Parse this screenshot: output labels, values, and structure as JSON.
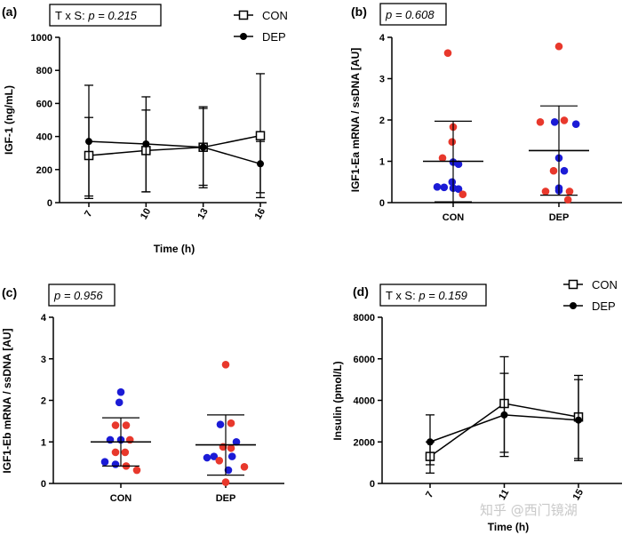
{
  "watermark": "知乎 @西门镜湖",
  "chart_data": [
    {
      "panel": "(a)",
      "type": "line",
      "stat_prefix": "T x S: ",
      "stat_p": "p = 0.215",
      "xlabel": "Time (h)",
      "ylabel": "IGF-1 (ng/mL)",
      "categories": [
        "7",
        "10",
        "13",
        "16"
      ],
      "ylim": [
        0,
        1000
      ],
      "yticks": [
        "0",
        "200",
        "400",
        "600",
        "800",
        "1000"
      ],
      "series": [
        {
          "name": "CON",
          "marker": "square-open",
          "values": [
            285,
            315,
            335,
            405
          ],
          "err_low": [
            40,
            65,
            90,
            30
          ],
          "err_high": [
            515,
            560,
            570,
            780
          ]
        },
        {
          "name": "DEP",
          "marker": "circle-filled",
          "values": [
            370,
            355,
            335,
            235
          ],
          "err_low": [
            25,
            65,
            105,
            60
          ],
          "err_high": [
            710,
            640,
            580,
            370
          ]
        }
      ]
    },
    {
      "panel": "(b)",
      "type": "scatter",
      "stat_p": "p = 0.608",
      "xlabel": "",
      "ylabel": "IGF1-Ea mRNA / ssDNA [AU]",
      "categories": [
        "CON",
        "DEP"
      ],
      "ylim": [
        0,
        4
      ],
      "yticks": [
        "0",
        "1",
        "2",
        "3",
        "4"
      ],
      "groups": [
        {
          "name": "CON",
          "mean": 1.0,
          "sd_low": 0.02,
          "sd_high": 1.97,
          "points": [
            {
              "x": -0.1,
              "y": 3.62,
              "c": "red"
            },
            {
              "x": 0.0,
              "y": 1.83,
              "c": "red"
            },
            {
              "x": -0.02,
              "y": 1.47,
              "c": "red"
            },
            {
              "x": -0.2,
              "y": 1.08,
              "c": "red"
            },
            {
              "x": 0.0,
              "y": 0.98,
              "c": "blue"
            },
            {
              "x": 0.1,
              "y": 0.93,
              "c": "blue"
            },
            {
              "x": -0.02,
              "y": 0.5,
              "c": "blue"
            },
            {
              "x": -0.3,
              "y": 0.38,
              "c": "blue"
            },
            {
              "x": -0.17,
              "y": 0.37,
              "c": "blue"
            },
            {
              "x": 0.0,
              "y": 0.35,
              "c": "blue"
            },
            {
              "x": 0.1,
              "y": 0.33,
              "c": "blue"
            },
            {
              "x": 0.18,
              "y": 0.2,
              "c": "red"
            }
          ]
        },
        {
          "name": "DEP",
          "mean": 1.26,
          "sd_low": 0.18,
          "sd_high": 2.34,
          "points": [
            {
              "x": 0.0,
              "y": 3.78,
              "c": "red"
            },
            {
              "x": -0.35,
              "y": 1.95,
              "c": "red"
            },
            {
              "x": -0.08,
              "y": 1.95,
              "c": "blue"
            },
            {
              "x": 0.1,
              "y": 1.99,
              "c": "red"
            },
            {
              "x": 0.32,
              "y": 1.9,
              "c": "blue"
            },
            {
              "x": 0.0,
              "y": 1.08,
              "c": "blue"
            },
            {
              "x": -0.1,
              "y": 0.77,
              "c": "red"
            },
            {
              "x": 0.1,
              "y": 0.77,
              "c": "blue"
            },
            {
              "x": 0.0,
              "y": 0.35,
              "c": "blue"
            },
            {
              "x": 0.0,
              "y": 0.29,
              "c": "blue"
            },
            {
              "x": -0.25,
              "y": 0.27,
              "c": "red"
            },
            {
              "x": 0.2,
              "y": 0.27,
              "c": "red"
            },
            {
              "x": 0.17,
              "y": 0.07,
              "c": "red"
            }
          ]
        }
      ]
    },
    {
      "panel": "(c)",
      "type": "scatter",
      "stat_p": "p = 0.956",
      "xlabel": "",
      "ylabel": "IGF1-Eb mRNA / ssDNA [AU]",
      "categories": [
        "CON",
        "DEP"
      ],
      "ylim": [
        0,
        4
      ],
      "yticks": [
        "0",
        "1",
        "2",
        "3",
        "4"
      ],
      "groups": [
        {
          "name": "CON",
          "mean": 1.0,
          "sd_low": 0.42,
          "sd_high": 1.58,
          "points": [
            {
              "x": 0.0,
              "y": 2.2,
              "c": "blue"
            },
            {
              "x": -0.03,
              "y": 1.95,
              "c": "blue"
            },
            {
              "x": -0.1,
              "y": 1.4,
              "c": "red"
            },
            {
              "x": 0.1,
              "y": 1.4,
              "c": "red"
            },
            {
              "x": -0.2,
              "y": 1.05,
              "c": "blue"
            },
            {
              "x": 0.0,
              "y": 1.05,
              "c": "blue"
            },
            {
              "x": 0.17,
              "y": 1.05,
              "c": "red"
            },
            {
              "x": -0.1,
              "y": 0.75,
              "c": "red"
            },
            {
              "x": 0.08,
              "y": 0.75,
              "c": "red"
            },
            {
              "x": -0.3,
              "y": 0.52,
              "c": "blue"
            },
            {
              "x": -0.1,
              "y": 0.46,
              "c": "blue"
            },
            {
              "x": 0.1,
              "y": 0.42,
              "c": "red"
            },
            {
              "x": 0.3,
              "y": 0.32,
              "c": "red"
            }
          ]
        },
        {
          "name": "DEP",
          "mean": 0.93,
          "sd_low": 0.2,
          "sd_high": 1.65,
          "points": [
            {
              "x": 0.0,
              "y": 2.86,
              "c": "red"
            },
            {
              "x": -0.1,
              "y": 1.42,
              "c": "blue"
            },
            {
              "x": 0.1,
              "y": 1.45,
              "c": "red"
            },
            {
              "x": 0.2,
              "y": 1.0,
              "c": "blue"
            },
            {
              "x": -0.05,
              "y": 0.88,
              "c": "red"
            },
            {
              "x": 0.1,
              "y": 0.85,
              "c": "red"
            },
            {
              "x": -0.35,
              "y": 0.62,
              "c": "blue"
            },
            {
              "x": -0.22,
              "y": 0.65,
              "c": "blue"
            },
            {
              "x": 0.12,
              "y": 0.65,
              "c": "blue"
            },
            {
              "x": -0.12,
              "y": 0.55,
              "c": "red"
            },
            {
              "x": 0.35,
              "y": 0.4,
              "c": "red"
            },
            {
              "x": 0.05,
              "y": 0.32,
              "c": "blue"
            },
            {
              "x": 0.0,
              "y": 0.03,
              "c": "red"
            }
          ]
        }
      ]
    },
    {
      "panel": "(d)",
      "type": "line",
      "stat_prefix": "T x S: ",
      "stat_p": "p = 0.159",
      "xlabel": "Time (h)",
      "ylabel": "Insulin (pmol/L)",
      "categories": [
        "7",
        "11",
        "15"
      ],
      "ylim": [
        0,
        8000
      ],
      "yticks": [
        "0",
        "2000",
        "4000",
        "6000",
        "8000"
      ],
      "series": [
        {
          "name": "CON",
          "marker": "square-open",
          "values": [
            1300,
            3850,
            3200
          ],
          "err_low": [
            500,
            1500,
            1200
          ],
          "err_high": [
            2000,
            6100,
            5200
          ]
        },
        {
          "name": "DEP",
          "marker": "circle-filled",
          "values": [
            2000,
            3300,
            3050
          ],
          "err_low": [
            900,
            1300,
            1100
          ],
          "err_high": [
            3300,
            5300,
            5000
          ]
        }
      ]
    }
  ],
  "colors": {
    "red": "#e8382c",
    "blue": "#1b1bd6",
    "line": "#000000"
  }
}
